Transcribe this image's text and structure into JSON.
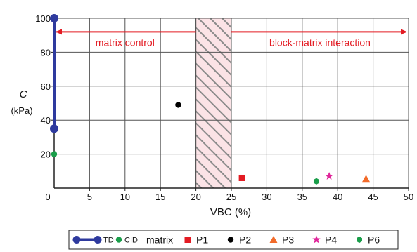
{
  "chart_data": {
    "type": "scatter",
    "xlabel": "VBC (%)",
    "ylabel": "C",
    "ylabel_unit": "(kPa)",
    "xlim": [
      0,
      50
    ],
    "ylim": [
      0,
      100
    ],
    "x_ticks": [
      0,
      5,
      10,
      15,
      20,
      25,
      30,
      35,
      40,
      45,
      50
    ],
    "y_ticks": [
      20,
      40,
      60,
      80,
      100
    ],
    "grid": true,
    "shaded_band": {
      "x_from": 20,
      "x_to": 25,
      "fill": "#fbe3e6",
      "hatch": "#888888"
    },
    "annotations": [
      {
        "text": "matrix control",
        "arrow_from": 20,
        "arrow_to": 0,
        "y": 92
      },
      {
        "text": "block-matrix interaction",
        "arrow_from": 25,
        "arrow_to": 50,
        "y": 92
      }
    ],
    "annotation_color": "#e31b23",
    "legend_position": "bottom",
    "series": [
      {
        "name": "TD",
        "marker": "line-dot",
        "color": "#2e3a9e",
        "points": [
          [
            0,
            100
          ],
          [
            0,
            35
          ]
        ]
      },
      {
        "name": "CID matrix",
        "marker": "circle",
        "color": "#1a9e4a",
        "points": [
          [
            0,
            20
          ]
        ]
      },
      {
        "name": "P1",
        "marker": "square",
        "color": "#e31b23",
        "points": [
          [
            26.5,
            6
          ]
        ]
      },
      {
        "name": "P2",
        "marker": "circle",
        "color": "#000000",
        "points": [
          [
            17.5,
            49
          ]
        ]
      },
      {
        "name": "P3",
        "marker": "triangle",
        "color": "#f26b2a",
        "points": [
          [
            44,
            5.5
          ]
        ]
      },
      {
        "name": "P4",
        "marker": "star",
        "color": "#e0259a",
        "points": [
          [
            38.8,
            7
          ]
        ]
      },
      {
        "name": "P6",
        "marker": "hexagon",
        "color": "#1a9e4a",
        "points": [
          [
            37,
            4
          ]
        ]
      }
    ]
  }
}
